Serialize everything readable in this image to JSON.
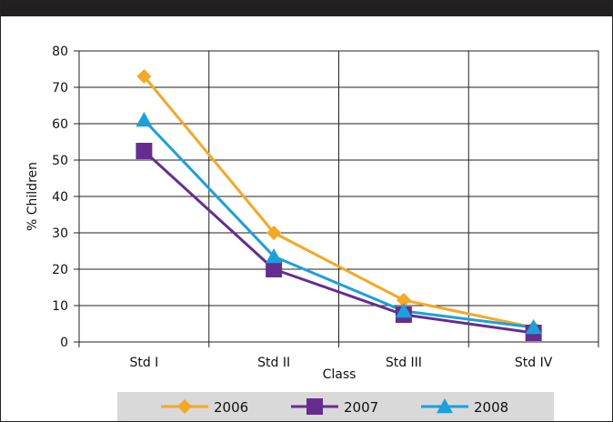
{
  "chart_data": {
    "type": "line",
    "categories": [
      "Std I",
      "Std II",
      "Std III",
      "Std IV"
    ],
    "xlabel": "Class",
    "ylabel": "% Children",
    "ylim": [
      0,
      80
    ],
    "yticks": [
      0,
      10,
      20,
      30,
      40,
      50,
      60,
      70,
      80
    ],
    "grid": true,
    "legend_position": "bottom",
    "series": [
      {
        "name": "2006",
        "values": [
          73,
          30,
          11.5,
          4
        ],
        "color": "#f7a823",
        "marker": "diamond"
      },
      {
        "name": "2007",
        "values": [
          52.5,
          20,
          7.5,
          2.5
        ],
        "color": "#662d91",
        "marker": "square"
      },
      {
        "name": "2008",
        "values": [
          61,
          23.5,
          8.5,
          4
        ],
        "color": "#1aa1dd",
        "marker": "triangle"
      }
    ]
  }
}
